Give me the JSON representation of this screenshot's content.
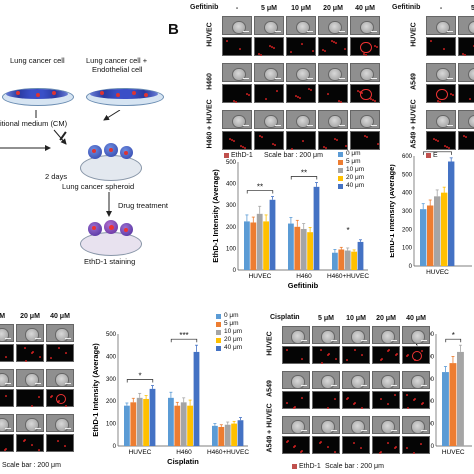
{
  "panel_b": {
    "letter": "B",
    "treatment_label": "Gefitinib",
    "concentrations": [
      "-",
      "5 μM",
      "10 μM",
      "20 μM",
      "40 μM"
    ],
    "rows": [
      "HUVEC",
      "H460",
      "H460 + HUVEC"
    ]
  },
  "panel_tr": {
    "treatment_label": "Gefitinib",
    "concentrations": [
      "-",
      "5"
    ],
    "rows": [
      "HUVEC",
      "A549",
      "A549 + HUVEC"
    ],
    "legend_partial": "E"
  },
  "panel_bm": {
    "concentrations": [
      "μM",
      "20 μM",
      "40 μM"
    ],
    "scale_text": "Scale bar : 200 μm"
  },
  "panel_br": {
    "treatment_label": "Cisplatin",
    "concentrations": [
      "-",
      "5 μM",
      "10 μM",
      "20 μM",
      "40 μM"
    ],
    "rows": [
      "HUVEC",
      "A549",
      "A549 + HUVEC"
    ],
    "legend_label": "EthD-1",
    "scale_text": "Scale bar : 200 μm"
  },
  "schematic": {
    "lung_cancer_cell": "Lung cancer cell",
    "lung_cancer_endo_line1": "Lung cancer cell +",
    "lung_cancer_endo_line2": "Endothelial cell",
    "medium": "itional medium (CM)",
    "days": "2 days",
    "spheroid": "Lung cancer spheroid",
    "drug": "Drug treatment",
    "staining": "EthD-1 staining"
  },
  "colors": {
    "c0": "#5b9bd5",
    "c5": "#ed7d31",
    "c10": "#a5a5a5",
    "c20": "#ffc000",
    "c40": "#4472c4",
    "sig": "#c00000"
  },
  "chart_data": [
    {
      "type": "bar",
      "ylabel": "EthD-1 Intensity (Average)",
      "xlabel": "Gefitinib",
      "categories": [
        "HUVEC",
        "H460",
        "H460+HUVEC"
      ],
      "ylim": [
        0,
        500
      ],
      "yticks": [
        0,
        100,
        200,
        300,
        400,
        500
      ],
      "legend": [
        "EthD-1",
        "Scale bar : 200 μm"
      ],
      "series": [
        {
          "name": "0 μm",
          "values": [
            225,
            215,
            80
          ],
          "errors": [
            30,
            28,
            15
          ]
        },
        {
          "name": "5 μm",
          "values": [
            220,
            200,
            95
          ],
          "errors": [
            25,
            30,
            10
          ]
        },
        {
          "name": "10 μm",
          "values": [
            260,
            190,
            90
          ],
          "errors": [
            35,
            25,
            12
          ]
        },
        {
          "name": "20 μm",
          "values": [
            225,
            175,
            85
          ],
          "errors": [
            30,
            22,
            8
          ]
        },
        {
          "name": "40 μm",
          "values": [
            325,
            385,
            130
          ],
          "errors": [
            15,
            20,
            10
          ]
        }
      ],
      "significance": [
        {
          "label": "**",
          "group": "HUVEC"
        },
        {
          "label": "**",
          "group": "H460"
        },
        {
          "label": "*",
          "group": "H460+HUVEC"
        }
      ]
    },
    {
      "type": "bar",
      "ylabel": "EthD-1 Intensity (Average)",
      "xlabel": "Cisplatin",
      "categories": [
        "HUVEC",
        "H460",
        "H460+HUVEC"
      ],
      "ylim": [
        0,
        500
      ],
      "yticks": [
        0,
        100,
        200,
        300,
        400,
        500
      ],
      "series": [
        {
          "name": "0 μm",
          "values": [
            180,
            215,
            90
          ],
          "errors": [
            12,
            25,
            10
          ]
        },
        {
          "name": "5 μm",
          "values": [
            195,
            180,
            85
          ],
          "errors": [
            18,
            15,
            10
          ]
        },
        {
          "name": "10 μm",
          "values": [
            215,
            195,
            95
          ],
          "errors": [
            20,
            20,
            12
          ]
        },
        {
          "name": "20 μm",
          "values": [
            210,
            180,
            100
          ],
          "errors": [
            15,
            25,
            10
          ]
        },
        {
          "name": "40 μm",
          "values": [
            255,
            420,
            115
          ],
          "errors": [
            15,
            30,
            12
          ]
        }
      ],
      "significance": [
        {
          "label": "*",
          "group": "HUVEC"
        },
        {
          "label": "***",
          "group": "H460"
        }
      ]
    },
    {
      "type": "bar",
      "ylabel": "EthD-1 Intensity (Average)",
      "xlabel": "",
      "categories": [
        "HUVEC"
      ],
      "ylim": [
        0,
        600
      ],
      "yticks": [
        0,
        100,
        200,
        300,
        400,
        500,
        600
      ],
      "legend": [
        "E"
      ],
      "series": [
        {
          "name": "0 μm",
          "values": [
            310
          ],
          "errors": [
            30
          ]
        },
        {
          "name": "5 μm",
          "values": [
            330
          ],
          "errors": [
            30
          ]
        },
        {
          "name": "10 μm",
          "values": [
            380
          ],
          "errors": [
            35
          ]
        },
        {
          "name": "20 μm",
          "values": [
            400
          ],
          "errors": [
            30
          ]
        },
        {
          "name": "40 μm",
          "values": [
            570
          ],
          "errors": [
            20
          ]
        }
      ],
      "significance": [
        {
          "label": "***",
          "group": "HUVEC"
        }
      ]
    },
    {
      "type": "bar",
      "ylabel": "EthD-1 Intensity (Average)",
      "xlabel": "",
      "categories": [
        "HUVEC"
      ],
      "ylim": [
        0,
        500
      ],
      "yticks": [
        0,
        100,
        200,
        300,
        400,
        500
      ],
      "series": [
        {
          "name": "0 μm",
          "values": [
            330
          ],
          "errors": [
            25
          ]
        },
        {
          "name": "5 μm",
          "values": [
            370
          ],
          "errors": [
            30
          ]
        },
        {
          "name": "10 μm",
          "values": [
            420
          ],
          "errors": [
            30
          ]
        }
      ],
      "significance": [
        {
          "label": "*",
          "group": "HUVEC"
        }
      ]
    }
  ]
}
